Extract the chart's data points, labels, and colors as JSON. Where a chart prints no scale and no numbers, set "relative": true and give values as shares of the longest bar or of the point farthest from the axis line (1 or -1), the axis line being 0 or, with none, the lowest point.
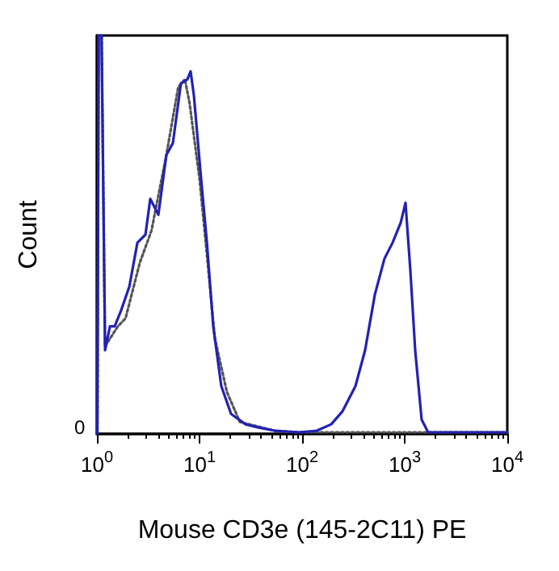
{
  "chart_data": {
    "type": "line",
    "xlabel": "Mouse CD3e (145-2C11) PE",
    "ylabel": "Count",
    "relative": true,
    "log": "x",
    "grid": false,
    "marker": "none",
    "xlim": [
      1,
      10000
    ],
    "xticks": [
      {
        "value": 1,
        "label": "10$^{0}$"
      },
      {
        "value": 10,
        "label": "10$^{1}$"
      },
      {
        "value": 100,
        "label": "10$^{2}$"
      },
      {
        "value": 1000,
        "label": "10$^{3}$"
      },
      {
        "value": 10000,
        "label": "10$^{4}$"
      }
    ],
    "annotations": [
      "0"
    ],
    "series": [
      {
        "color": "#555555",
        "line_style": "dotted",
        "x": [
          1.01,
          1.04,
          1.11,
          1.2,
          1.6,
          1.9,
          2.62,
          3.4,
          4.75,
          6.2,
          7.2,
          8.0,
          10.0,
          11.8,
          14.1,
          18.5,
          24.7,
          54,
          93,
          192,
          411,
          1018,
          4190,
          10000
        ],
        "values": [
          0,
          1.0,
          1.0,
          0.22,
          0.27,
          0.29,
          0.43,
          0.51,
          0.7,
          0.87,
          0.89,
          0.83,
          0.64,
          0.45,
          0.24,
          0.105,
          0.03,
          0.008,
          0.004,
          0.004,
          0.004,
          0.004,
          0.004,
          0.004
        ]
      },
      {
        "color": "#2222b4",
        "line_style": "solid",
        "x": [
          1.01,
          1.04,
          1.11,
          1.2,
          1.34,
          1.49,
          1.72,
          2.07,
          2.48,
          2.97,
          3.31,
          3.97,
          4.75,
          5.5,
          6.59,
          7.62,
          8.19,
          8.81,
          10.2,
          11.8,
          13.6,
          16.3,
          20.3,
          28.1,
          37.6,
          54,
          93,
          139,
          192,
          248,
          331,
          411,
          512,
          635,
          762,
          914,
          1018,
          1135,
          1265,
          1462,
          1691,
          4190,
          10000
        ],
        "values": [
          0,
          1.0,
          1.0,
          0.21,
          0.27,
          0.27,
          0.31,
          0.37,
          0.48,
          0.5,
          0.59,
          0.55,
          0.7,
          0.73,
          0.88,
          0.89,
          0.91,
          0.85,
          0.66,
          0.48,
          0.27,
          0.12,
          0.05,
          0.024,
          0.016,
          0.008,
          0.004,
          0.008,
          0.024,
          0.057,
          0.12,
          0.21,
          0.35,
          0.44,
          0.48,
          0.53,
          0.58,
          0.41,
          0.21,
          0.036,
          0.004,
          0.004,
          0.004
        ]
      }
    ]
  }
}
